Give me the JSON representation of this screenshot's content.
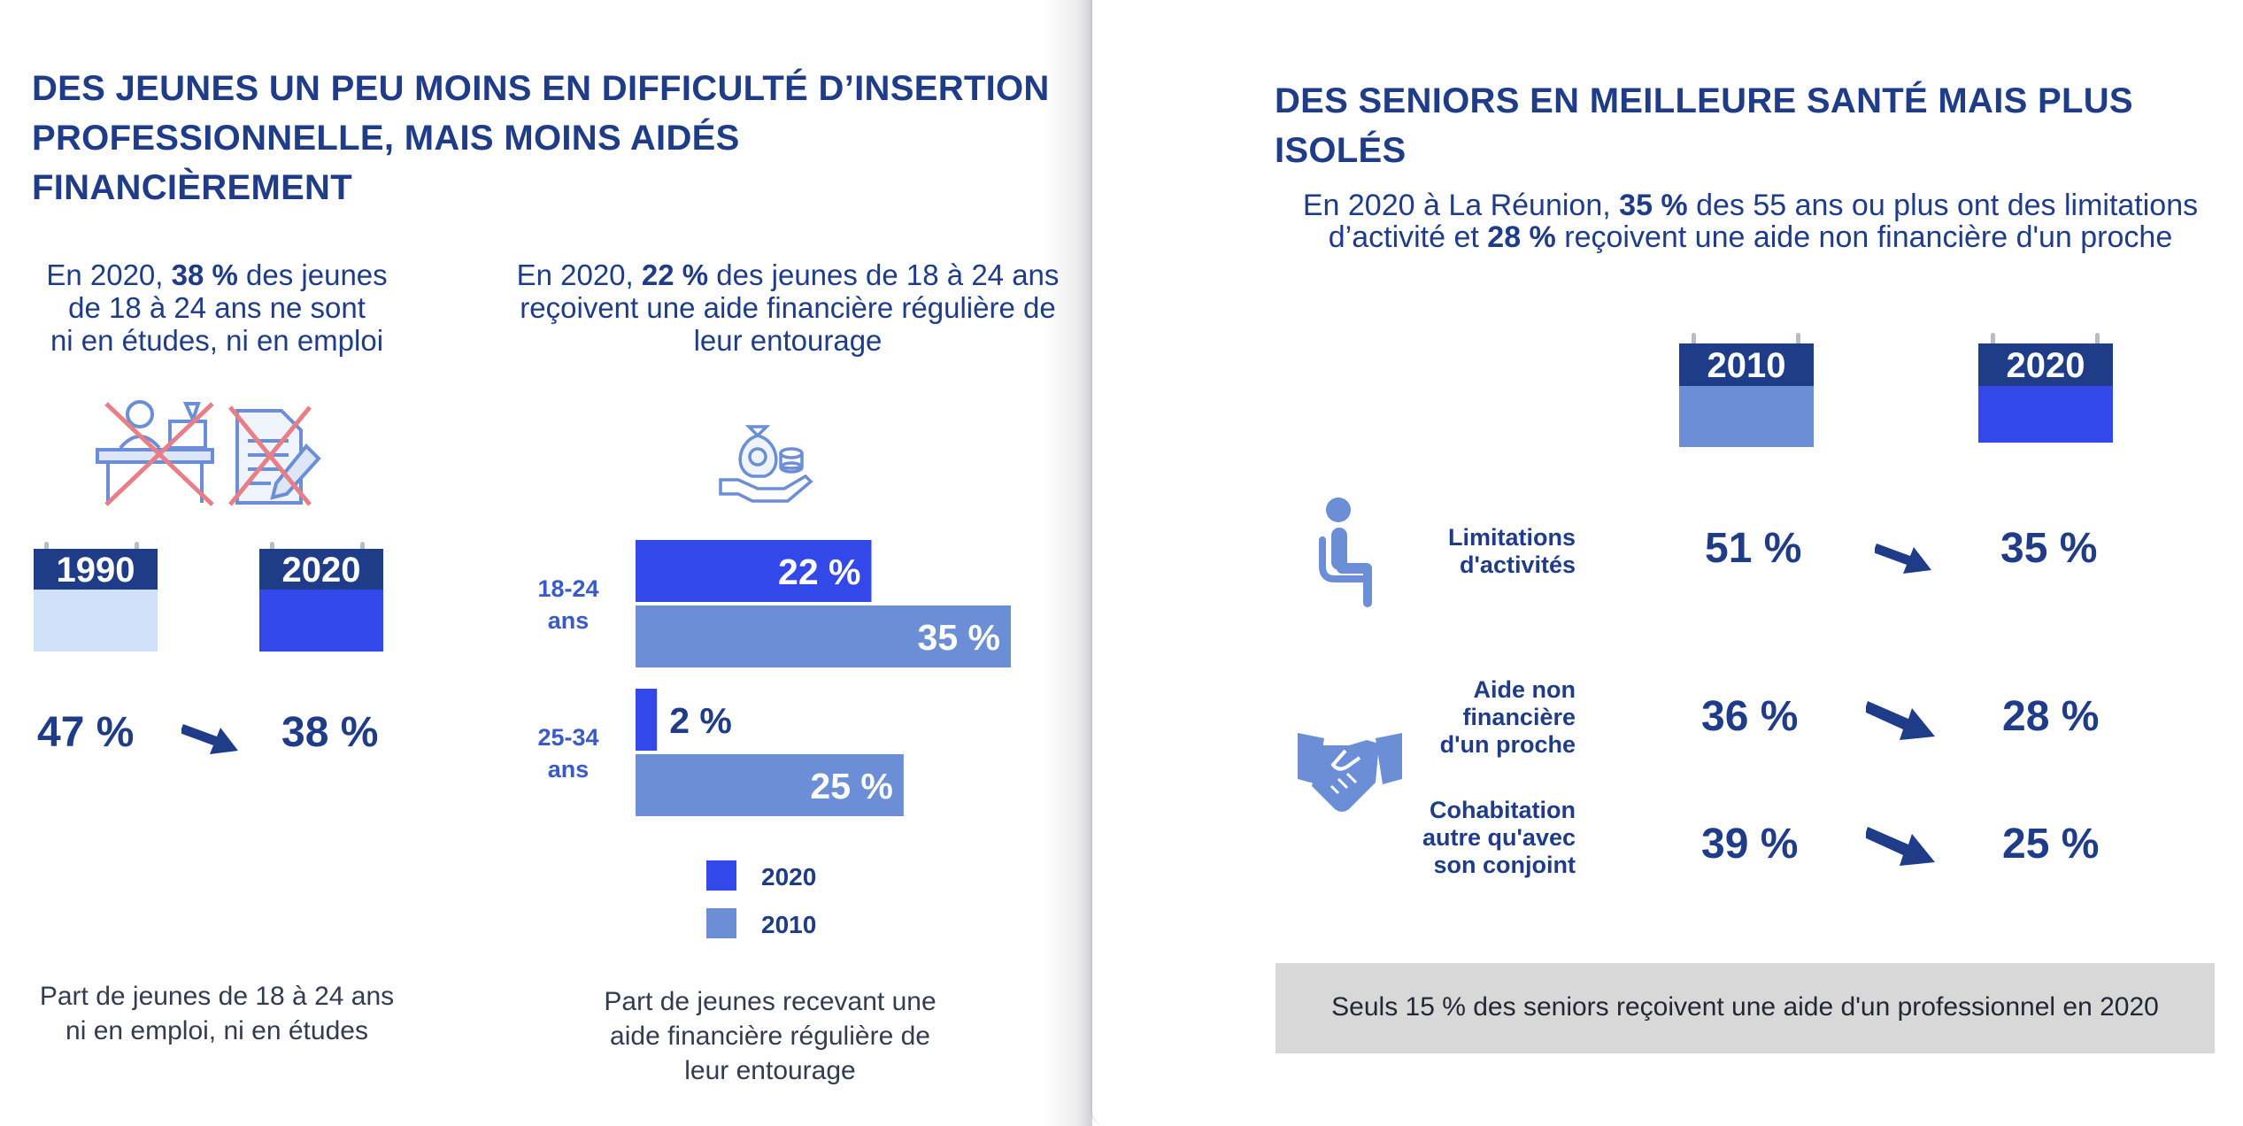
{
  "left": {
    "title_line1": "DES JEUNES UN PEU MOINS EN DIFFICULTÉ D’INSERTION",
    "title_line2": "PROFESSIONNELLE, MAIS MOINS AIDÉS FINANCIÈREMENT",
    "neet": {
      "text_line1_pre": "En 2020,",
      "text_line1_bold": "38 %",
      "text_line1_post": "des jeunes",
      "text_line2": "de 18 à 24 ans ne sont",
      "text_line3": "ni en études, ni en emploi",
      "year_a": "1990",
      "year_b": "2020",
      "value_a": "47 %",
      "value_b": "38 %",
      "caption_line1": "Part de jeunes de 18 à 24 ans",
      "caption_line2": "ni en emploi, ni en études",
      "color_a": "#cfe0f8",
      "color_b": "#3348e8",
      "head_color": "#1f3c88"
    },
    "aid": {
      "text_line1_pre": "En 2020,",
      "text_line1_bold": "22 %",
      "text_line1_post": "des jeunes de 18 à 24 ans",
      "text_line2": "reçoivent une aide financière régulière de",
      "text_line3": "leur entourage",
      "caption_line1": "Part de jeunes recevant une",
      "caption_line2": "aide financière régulière de",
      "caption_line3": "leur entourage"
    }
  },
  "right": {
    "title": "DES SENIORS EN MEILLEURE SANTÉ MAIS PLUS ISOLÉS",
    "intro_line1_pre": "En 2020 à La Réunion,",
    "intro_line1_bold": "35 %",
    "intro_line1_post": "des 55 ans ou plus ont des limitations",
    "intro_line2_pre": "d’activité et",
    "intro_line2_bold": "28 %",
    "intro_line2_post": "reçoivent une aide non financière d'un proche",
    "year_a": "2010",
    "year_b": "2020",
    "color_a": "#6b8ed6",
    "color_b": "#3348e8",
    "head_color": "#1f3c88",
    "rows": [
      {
        "label_line1": "Limitations",
        "label_line2": "d'activités",
        "label_line3": "",
        "value_a": "51 %",
        "value_b": "35 %"
      },
      {
        "label_line1": "Aide non",
        "label_line2": "financière",
        "label_line3": "d'un proche",
        "value_a": "36 %",
        "value_b": "28 %"
      },
      {
        "label_line1": "Cohabitation",
        "label_line2": "autre qu'avec",
        "label_line3": "son conjoint",
        "value_a": "39 %",
        "value_b": "25 %"
      }
    ],
    "footer": "Seuls 15 % des seniors reçoivent une aide d'un professionnel en 2020"
  },
  "chart_data": [
    {
      "type": "bar",
      "orientation": "horizontal",
      "categories": [
        "18-24 ans",
        "25-34 ans"
      ],
      "series": [
        {
          "name": "2020",
          "color": "#3348e8",
          "values": [
            22,
            2
          ],
          "labels": [
            "22 %",
            "2 %"
          ]
        },
        {
          "name": "2010",
          "color": "#6b8ed6",
          "values": [
            35,
            25
          ],
          "labels": [
            "35 %",
            "25 %"
          ]
        }
      ],
      "xlim": [
        0,
        35
      ],
      "legend": "bottom",
      "grid": false
    }
  ]
}
